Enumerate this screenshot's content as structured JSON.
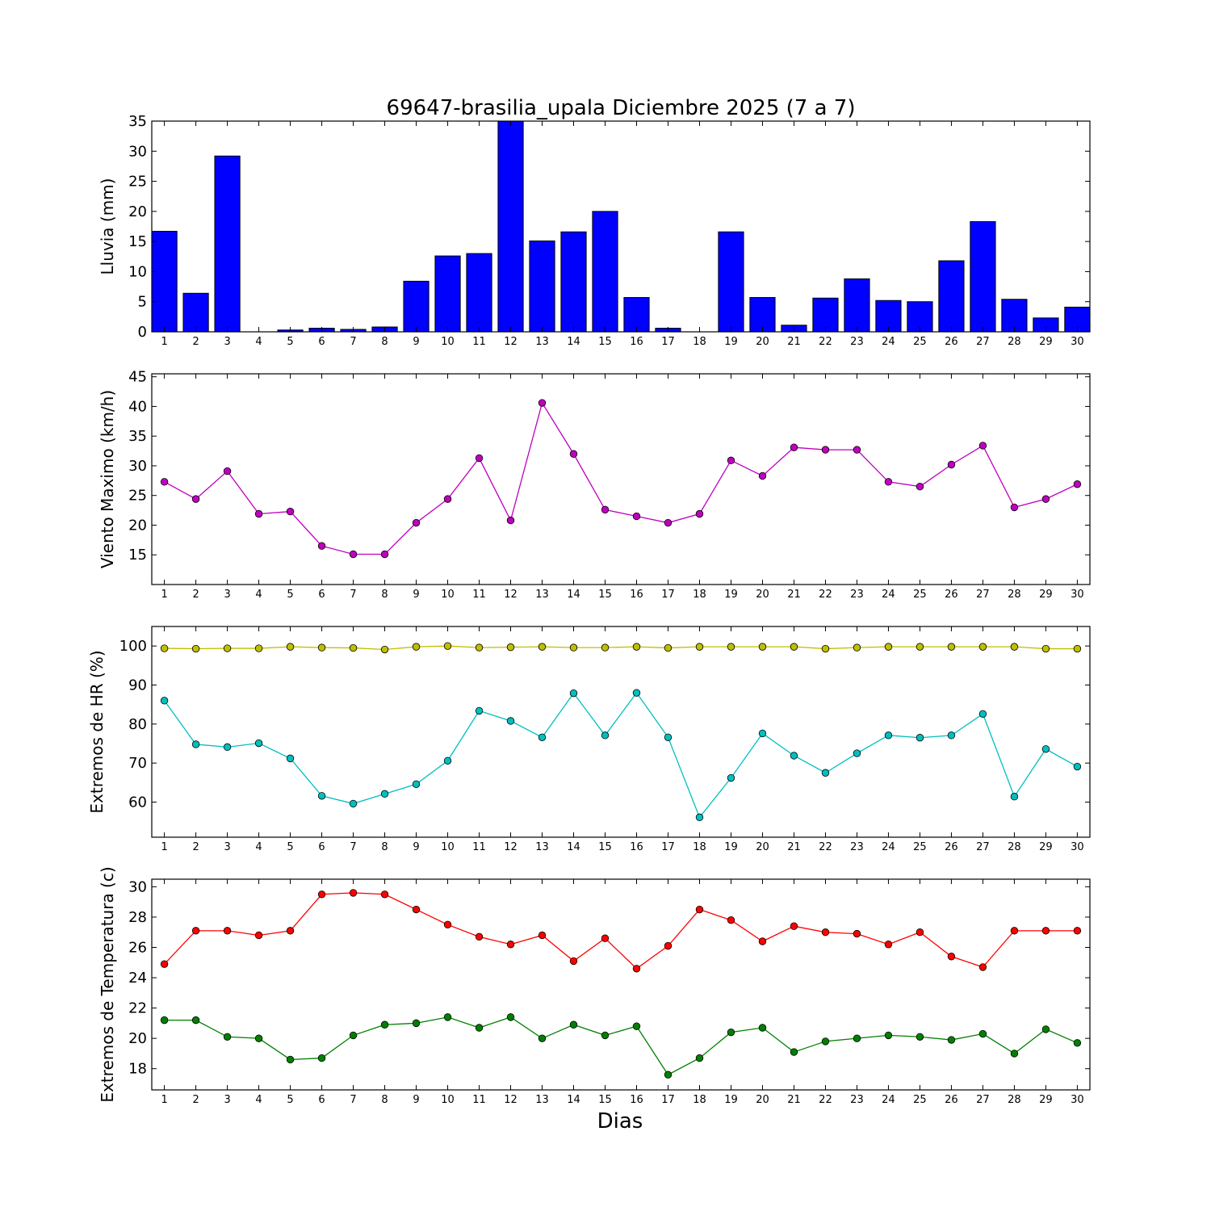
{
  "chart_data": [
    {
      "type": "bar",
      "title": "69647-brasilia_upala Diciembre 2025  (7 a 7)",
      "ylabel": "Lluvia (mm)",
      "ylim": [
        0,
        35
      ],
      "yticks": [
        0,
        5,
        10,
        15,
        20,
        25,
        30,
        35
      ],
      "categories": [
        1,
        2,
        3,
        4,
        5,
        6,
        7,
        8,
        9,
        10,
        11,
        12,
        13,
        14,
        15,
        16,
        17,
        18,
        19,
        20,
        21,
        22,
        23,
        24,
        25,
        26,
        27,
        28,
        29,
        30
      ],
      "series": [
        {
          "color": "#0000ff",
          "values": [
            16.7,
            6.4,
            29.2,
            0,
            0.3,
            0.6,
            0.4,
            0.8,
            8.4,
            12.6,
            13.0,
            35.0,
            15.1,
            16.6,
            20.0,
            5.7,
            0.6,
            0,
            16.6,
            5.7,
            1.1,
            5.6,
            8.8,
            5.2,
            5.0,
            11.8,
            18.3,
            5.4,
            2.3,
            4.1
          ]
        }
      ]
    },
    {
      "type": "line",
      "ylabel": "Viento Maximo (km/h)",
      "ylim": [
        10,
        45.5
      ],
      "yticks": [
        15,
        20,
        25,
        30,
        35,
        40,
        45
      ],
      "categories": [
        1,
        2,
        3,
        4,
        5,
        6,
        7,
        8,
        9,
        10,
        11,
        12,
        13,
        14,
        15,
        16,
        17,
        18,
        19,
        20,
        21,
        22,
        23,
        24,
        25,
        26,
        27,
        28,
        29,
        30
      ],
      "series": [
        {
          "color": "#bf00bf",
          "values": [
            27.3,
            24.4,
            29.1,
            21.9,
            22.3,
            16.5,
            15.1,
            15.1,
            20.4,
            24.4,
            31.3,
            20.8,
            40.6,
            32.0,
            22.6,
            21.5,
            20.4,
            21.9,
            30.9,
            28.3,
            33.1,
            32.7,
            32.7,
            27.3,
            26.5,
            30.2,
            33.4,
            23.0,
            24.4,
            26.9
          ]
        }
      ]
    },
    {
      "type": "line",
      "ylabel": "Extremos de HR (%)",
      "ylim": [
        51,
        105
      ],
      "yticks": [
        60,
        70,
        80,
        90,
        100
      ],
      "categories": [
        1,
        2,
        3,
        4,
        5,
        6,
        7,
        8,
        9,
        10,
        11,
        12,
        13,
        14,
        15,
        16,
        17,
        18,
        19,
        20,
        21,
        22,
        23,
        24,
        25,
        26,
        27,
        28,
        29,
        30
      ],
      "series": [
        {
          "color": "#bfbf00",
          "values": [
            99.4,
            99.3,
            99.4,
            99.4,
            99.8,
            99.6,
            99.5,
            99.1,
            99.8,
            100,
            99.6,
            99.7,
            99.8,
            99.6,
            99.6,
            99.8,
            99.5,
            99.8,
            99.8,
            99.8,
            99.8,
            99.3,
            99.6,
            99.8,
            99.8,
            99.8,
            99.8,
            99.8,
            99.3,
            99.3
          ]
        },
        {
          "color": "#00bfbf",
          "values": [
            86.0,
            74.8,
            74.1,
            75.1,
            71.2,
            61.6,
            59.6,
            62.1,
            64.6,
            70.6,
            83.4,
            80.8,
            76.6,
            87.9,
            77.1,
            88.0,
            76.6,
            56.1,
            66.2,
            77.6,
            71.9,
            67.5,
            72.5,
            77.1,
            76.5,
            77.1,
            82.6,
            61.4,
            73.6,
            69.1
          ]
        }
      ]
    },
    {
      "type": "line",
      "ylabel": "Extremos de Temperatura (c)",
      "xlabel": "Dias",
      "ylim": [
        16.6,
        30.5
      ],
      "yticks": [
        18,
        20,
        22,
        24,
        26,
        28,
        30
      ],
      "categories": [
        1,
        2,
        3,
        4,
        5,
        6,
        7,
        8,
        9,
        10,
        11,
        12,
        13,
        14,
        15,
        16,
        17,
        18,
        19,
        20,
        21,
        22,
        23,
        24,
        25,
        26,
        27,
        28,
        29,
        30
      ],
      "series": [
        {
          "color": "#ff0000",
          "values": [
            24.9,
            27.1,
            27.1,
            26.8,
            27.1,
            29.5,
            29.6,
            29.5,
            28.5,
            27.5,
            26.7,
            26.2,
            26.8,
            25.1,
            26.6,
            24.6,
            26.1,
            28.5,
            27.8,
            26.4,
            27.4,
            27.0,
            26.9,
            26.2,
            27.0,
            25.4,
            24.7,
            27.1,
            27.1,
            27.1
          ]
        },
        {
          "color": "#008000",
          "values": [
            21.2,
            21.2,
            20.1,
            20.0,
            18.6,
            18.7,
            20.2,
            20.9,
            21.0,
            21.4,
            20.7,
            21.4,
            20.0,
            20.9,
            20.2,
            20.8,
            17.6,
            18.7,
            20.4,
            20.7,
            19.1,
            19.8,
            20.0,
            20.2,
            20.1,
            19.9,
            20.3,
            19.0,
            20.6,
            19.7
          ]
        }
      ]
    }
  ]
}
